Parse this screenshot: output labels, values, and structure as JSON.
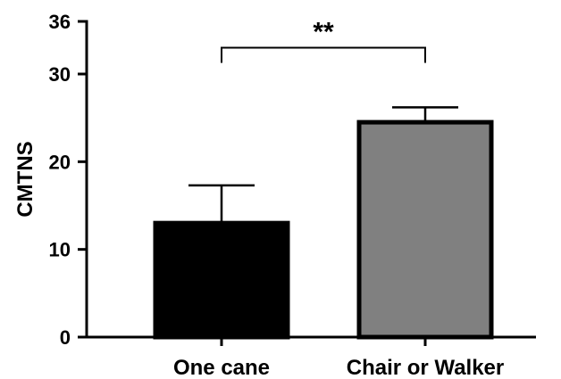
{
  "chart_data": {
    "type": "bar",
    "categories": [
      "One cane",
      "Chair or Walker"
    ],
    "values": [
      13,
      24.5
    ],
    "error_upper": [
      17.3,
      26.2
    ],
    "ylabel": "CMTNS",
    "xlabel": "",
    "ylim": [
      0,
      36
    ],
    "yticks": [
      "0",
      "10",
      "20",
      "30",
      "36"
    ],
    "ytick_values": [
      0,
      10,
      20,
      30,
      36
    ],
    "bar_colors": [
      "#000000",
      "#808080"
    ],
    "bar_edge_color": "#000000",
    "significance": {
      "label": "**",
      "between": [
        0,
        1
      ],
      "level": 33
    },
    "grid": false,
    "legend": "none"
  }
}
